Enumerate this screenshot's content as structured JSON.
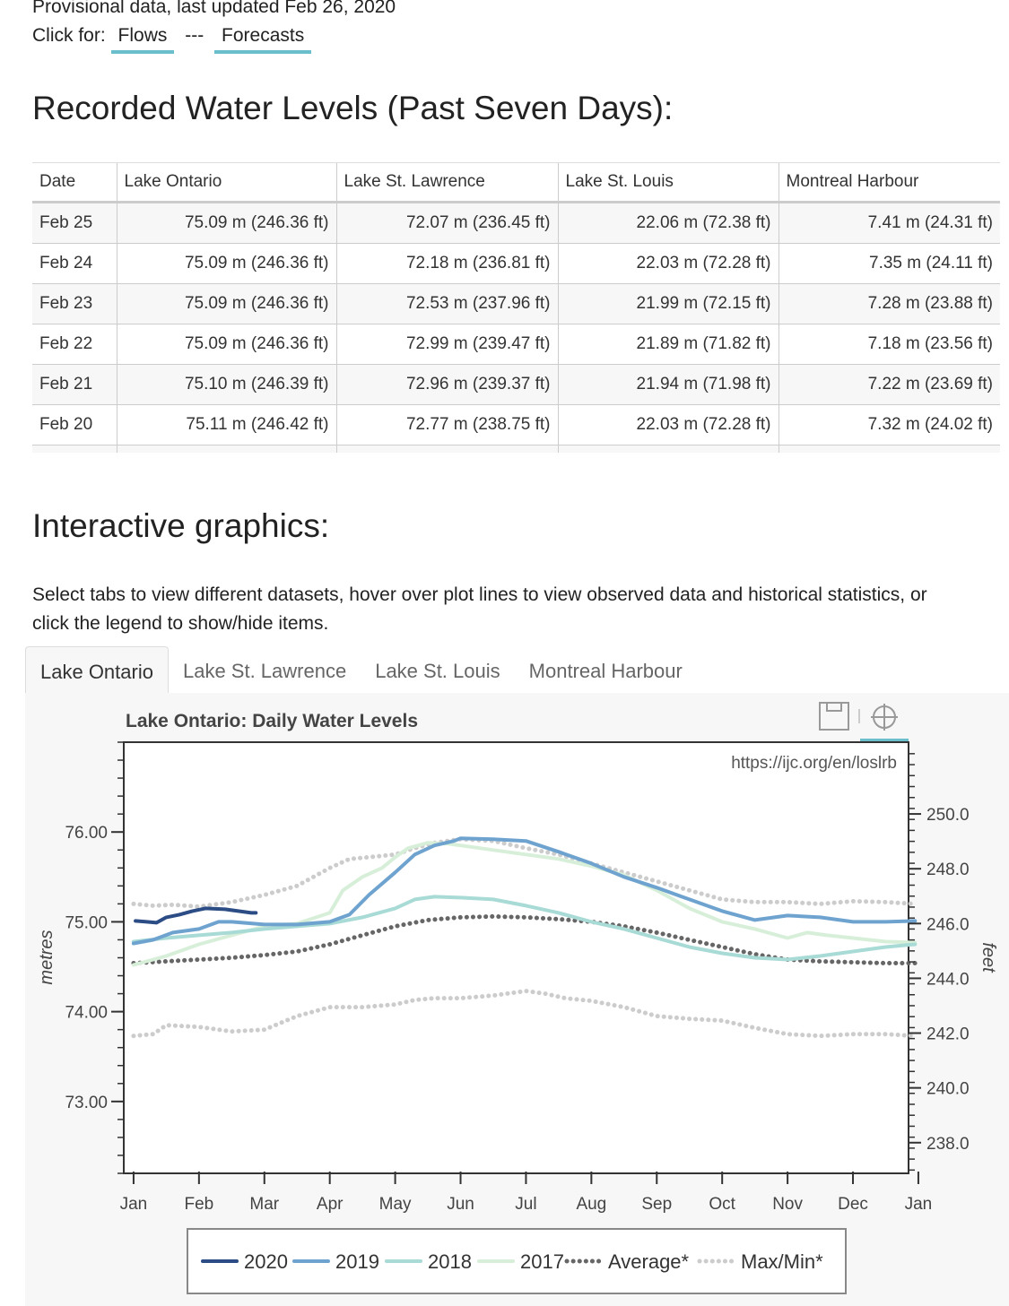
{
  "header": {
    "provisional": "Provisional data, last updated Feb 26, 2020",
    "click_for": "Click for:",
    "flows_link": "Flows",
    "separator": "---",
    "forecasts_link": "Forecasts"
  },
  "recorded": {
    "heading": "Recorded Water Levels (Past Seven Days):",
    "columns": [
      "Date",
      "Lake Ontario",
      "Lake St. Lawrence",
      "Lake St. Louis",
      "Montreal Harbour"
    ],
    "rows": [
      [
        "Feb 25",
        "75.09 m (246.36 ft)",
        "72.07 m (236.45 ft)",
        "22.06 m (72.38 ft)",
        "7.41 m (24.31 ft)"
      ],
      [
        "Feb 24",
        "75.09 m (246.36 ft)",
        "72.18 m (236.81 ft)",
        "22.03 m (72.28 ft)",
        "7.35 m (24.11 ft)"
      ],
      [
        "Feb 23",
        "75.09 m (246.36 ft)",
        "72.53 m (237.96 ft)",
        "21.99 m (72.15 ft)",
        "7.28 m (23.88 ft)"
      ],
      [
        "Feb 22",
        "75.09 m (246.36 ft)",
        "72.99 m (239.47 ft)",
        "21.89 m (71.82 ft)",
        "7.18 m (23.56 ft)"
      ],
      [
        "Feb 21",
        "75.10 m (246.39 ft)",
        "72.96 m (239.37 ft)",
        "21.94 m (71.98 ft)",
        "7.22 m (23.69 ft)"
      ],
      [
        "Feb 20",
        "75.11 m (246.42 ft)",
        "72.77 m (238.75 ft)",
        "22.03 m (72.28 ft)",
        "7.32 m (24.02 ft)"
      ]
    ]
  },
  "interactive": {
    "heading": "Interactive graphics:",
    "instructions": "Select tabs to view different datasets, hover over plot lines to view observed data and historical statistics, or click the legend to show/hide items.",
    "tabs": [
      "Lake Ontario",
      "Lake St. Lawrence",
      "Lake St. Louis",
      "Montreal Harbour"
    ],
    "active_tab": 0
  },
  "chart_data": {
    "type": "line",
    "title": "Lake Ontario: Daily Water Levels",
    "watermark": "https://ijc.org/en/loslrb",
    "ylabel": "metres",
    "y2label": "feet",
    "ylim": [
      72.2,
      77.0
    ],
    "y2lim": [
      236.88,
      252.62
    ],
    "xlim": [
      0.85,
      12.85
    ],
    "x_ticks": [
      1,
      2,
      3,
      4,
      5,
      6,
      7,
      8,
      9,
      10,
      11,
      12,
      13
    ],
    "x_tick_labels": [
      "Jan",
      "Feb",
      "Mar",
      "Apr",
      "May",
      "Jun",
      "Jul",
      "Aug",
      "Sep",
      "Oct",
      "Nov",
      "Dec",
      "Jan"
    ],
    "y_ticks": [
      73.0,
      74.0,
      75.0,
      76.0
    ],
    "y_tick_labels": [
      "73.00",
      "74.00",
      "75.00",
      "76.00"
    ],
    "y2_ticks": [
      238.0,
      240.0,
      242.0,
      244.0,
      246.0,
      248.0,
      250.0
    ],
    "y2_tick_labels": [
      "238.0",
      "240.0",
      "242.0",
      "244.0",
      "246.0",
      "248.0",
      "250.0"
    ],
    "grid": false,
    "legend_position": "bottom",
    "toolbar_icons": [
      "save-icon",
      "crosshair-icon"
    ],
    "series": [
      {
        "name": "Max/Min*",
        "style": "dotted",
        "color": "#cccccc",
        "x": [
          1.0,
          1.3,
          1.6,
          2.0,
          2.5,
          3.0,
          3.5,
          4.0,
          4.3,
          4.6,
          5.0,
          5.3,
          5.6,
          6.0,
          6.5,
          7.0,
          7.5,
          8.0,
          8.5,
          9.0,
          9.5,
          10.0,
          10.5,
          11.0,
          11.5,
          12.0,
          12.5,
          12.95
        ],
        "y": [
          75.2,
          75.18,
          75.19,
          75.17,
          75.22,
          75.3,
          75.4,
          75.6,
          75.7,
          75.72,
          75.75,
          75.82,
          75.88,
          75.92,
          75.9,
          75.82,
          75.75,
          75.65,
          75.55,
          75.45,
          75.35,
          75.25,
          75.22,
          75.22,
          75.2,
          75.23,
          75.22,
          75.2
        ]
      },
      {
        "name": "Max/Min*",
        "style": "dotted",
        "color": "#cccccc",
        "x": [
          1.0,
          1.3,
          1.5,
          2.0,
          2.5,
          3.0,
          3.5,
          4.0,
          4.5,
          5.0,
          5.3,
          5.6,
          6.0,
          6.5,
          7.0,
          7.3,
          7.6,
          8.0,
          8.5,
          9.0,
          9.5,
          10.0,
          10.5,
          11.0,
          11.5,
          12.0,
          12.5,
          12.95
        ],
        "y": [
          73.73,
          73.75,
          73.85,
          73.83,
          73.78,
          73.8,
          73.95,
          74.05,
          74.05,
          74.08,
          74.13,
          74.15,
          74.15,
          74.18,
          74.23,
          74.2,
          74.15,
          74.12,
          74.05,
          73.95,
          73.92,
          73.9,
          73.82,
          73.75,
          73.73,
          73.75,
          73.75,
          73.73
        ]
      },
      {
        "name": "Average*",
        "style": "dotted",
        "color": "#666666",
        "x": [
          1.0,
          1.5,
          2.0,
          2.5,
          3.0,
          3.5,
          4.0,
          4.5,
          5.0,
          5.5,
          6.0,
          6.5,
          7.0,
          7.5,
          8.0,
          8.5,
          9.0,
          9.5,
          10.0,
          10.5,
          11.0,
          11.5,
          12.0,
          12.5,
          12.95
        ],
        "y": [
          74.54,
          74.56,
          74.58,
          74.6,
          74.63,
          74.67,
          74.75,
          74.85,
          74.95,
          75.02,
          75.05,
          75.06,
          75.05,
          75.03,
          75.0,
          74.95,
          74.88,
          74.8,
          74.72,
          74.64,
          74.58,
          74.56,
          74.55,
          74.54,
          74.54
        ]
      },
      {
        "name": "2017",
        "style": "solid",
        "color": "#d7efd9",
        "x": [
          1.0,
          1.5,
          2.0,
          2.5,
          3.0,
          3.5,
          4.0,
          4.2,
          4.5,
          4.8,
          5.0,
          5.2,
          5.5,
          5.8,
          6.0,
          6.5,
          7.0,
          7.5,
          8.0,
          8.5,
          9.0,
          9.5,
          10.0,
          10.5,
          11.0,
          11.3,
          11.6,
          12.0,
          12.5,
          12.95
        ],
        "y": [
          74.52,
          74.62,
          74.75,
          74.85,
          74.95,
          74.98,
          75.1,
          75.35,
          75.5,
          75.6,
          75.72,
          75.82,
          75.88,
          75.87,
          75.85,
          75.8,
          75.75,
          75.7,
          75.62,
          75.52,
          75.35,
          75.15,
          75.0,
          74.92,
          74.82,
          74.88,
          74.85,
          74.82,
          74.78,
          74.77
        ]
      },
      {
        "name": "2018",
        "style": "solid",
        "color": "#a8dad6",
        "x": [
          1.0,
          1.5,
          2.0,
          2.5,
          3.0,
          3.5,
          4.0,
          4.5,
          5.0,
          5.3,
          5.6,
          6.0,
          6.5,
          7.0,
          7.5,
          8.0,
          8.5,
          9.0,
          9.5,
          10.0,
          10.5,
          11.0,
          11.5,
          12.0,
          12.5,
          12.95
        ],
        "y": [
          74.78,
          74.82,
          74.85,
          74.88,
          74.92,
          74.95,
          74.98,
          75.05,
          75.15,
          75.25,
          75.28,
          75.27,
          75.25,
          75.18,
          75.1,
          75.0,
          74.92,
          74.82,
          74.72,
          74.65,
          74.6,
          74.58,
          74.62,
          74.67,
          74.72,
          74.75
        ]
      },
      {
        "name": "2019",
        "style": "solid",
        "color": "#6fa3cf",
        "x": [
          1.0,
          1.3,
          1.6,
          2.0,
          2.3,
          2.5,
          3.0,
          3.5,
          4.0,
          4.3,
          4.6,
          5.0,
          5.3,
          5.6,
          5.9,
          6.0,
          6.5,
          7.0,
          7.5,
          8.0,
          8.5,
          9.0,
          9.5,
          10.0,
          10.5,
          11.0,
          11.5,
          12.0,
          12.5,
          12.95
        ],
        "y": [
          74.76,
          74.8,
          74.88,
          74.92,
          75.0,
          75.0,
          74.97,
          74.97,
          75.0,
          75.08,
          75.3,
          75.55,
          75.75,
          75.85,
          75.9,
          75.93,
          75.92,
          75.9,
          75.78,
          75.65,
          75.5,
          75.38,
          75.25,
          75.12,
          75.02,
          75.07,
          75.05,
          75.0,
          75.0,
          75.01
        ]
      },
      {
        "name": "2020",
        "style": "solid",
        "color": "#2b4c84",
        "x": [
          1.03,
          1.2,
          1.35,
          1.5,
          1.7,
          1.9,
          2.1,
          2.4,
          2.6,
          2.8,
          2.87
        ],
        "y": [
          75.01,
          75.0,
          74.99,
          75.05,
          75.08,
          75.12,
          75.15,
          75.14,
          75.12,
          75.1,
          75.1
        ]
      }
    ]
  }
}
